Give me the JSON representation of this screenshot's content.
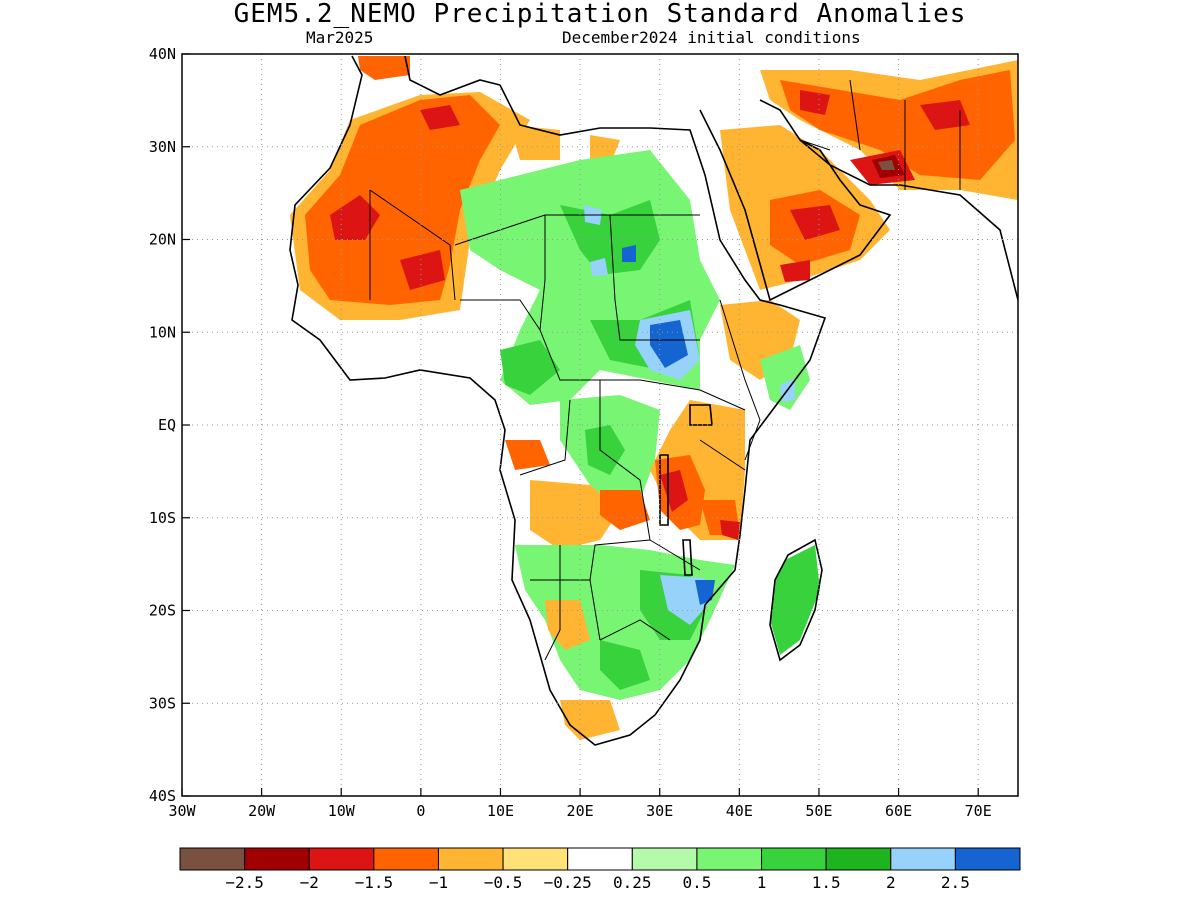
{
  "title": "GEM5.2_NEMO Precipitation Standard Anomalies",
  "subtitle_left": "Mar2025",
  "subtitle_right": "December2024 initial conditions",
  "map": {
    "lon_range": [
      -30,
      75
    ],
    "lat_range": [
      -40,
      40
    ],
    "lon_ticks": [
      {
        "value": -30,
        "label": "30W"
      },
      {
        "value": -20,
        "label": "20W"
      },
      {
        "value": -10,
        "label": "10W"
      },
      {
        "value": 0,
        "label": "0"
      },
      {
        "value": 10,
        "label": "10E"
      },
      {
        "value": 20,
        "label": "20E"
      },
      {
        "value": 30,
        "label": "30E"
      },
      {
        "value": 40,
        "label": "40E"
      },
      {
        "value": 50,
        "label": "50E"
      },
      {
        "value": 60,
        "label": "60E"
      },
      {
        "value": 70,
        "label": "70E"
      }
    ],
    "lat_ticks": [
      {
        "value": 40,
        "label": "40N"
      },
      {
        "value": 30,
        "label": "30N"
      },
      {
        "value": 20,
        "label": "20N"
      },
      {
        "value": 10,
        "label": "10N"
      },
      {
        "value": 0,
        "label": "EQ"
      },
      {
        "value": -10,
        "label": "10S"
      },
      {
        "value": -20,
        "label": "20S"
      },
      {
        "value": -30,
        "label": "30S"
      },
      {
        "value": -40,
        "label": "40S"
      }
    ],
    "grid": true
  },
  "colorbar": {
    "colors": [
      "#7a5040",
      "#a00000",
      "#dc1414",
      "#ff6400",
      "#ffb432",
      "#ffe178",
      "#ffffff",
      "#b4faaa",
      "#78f573",
      "#37d23c",
      "#1eb41e",
      "#96d2fa",
      "#1464d2"
    ],
    "labels": [
      "−2.5",
      "−2",
      "−1.5",
      "−1",
      "−0.5",
      "−0.25",
      "0.25",
      "0.5",
      "1",
      "1.5",
      "2",
      "2.5"
    ]
  }
}
